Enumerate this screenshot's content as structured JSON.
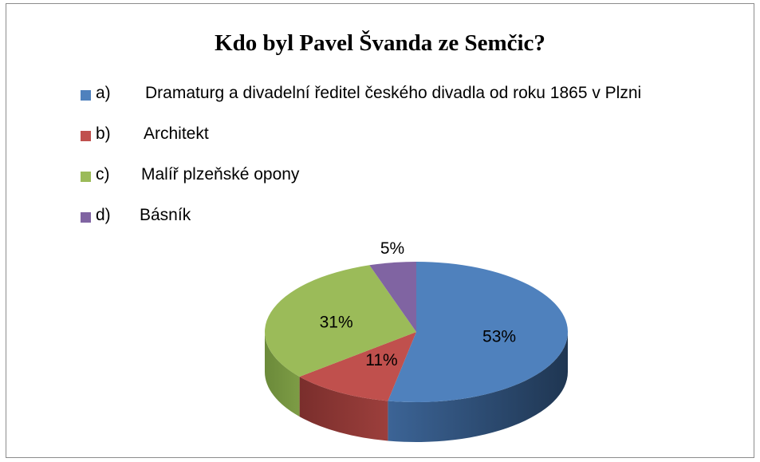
{
  "chart_data": {
    "type": "pie",
    "title": "Kdo byl Pavel Švanda ze Semčic?",
    "categories": [
      "a)  Dramaturg a divadelní ředitel českého divadla od roku 1865 v Plzni",
      "b)  Architekt",
      "c)  Malíř plzeňské opony",
      "d)  Básník"
    ],
    "legend_letters": [
      "a)",
      "b)",
      "c)",
      "d)"
    ],
    "legend_texts": [
      "Dramaturg a divadelní ředitel českého divadla od roku 1865 v Plzni",
      "Architekt",
      "Malíř plzeňské opony",
      "Básník"
    ],
    "values": [
      53,
      11,
      31,
      5
    ],
    "data_labels": [
      "53%",
      "11%",
      "31%",
      "5%"
    ],
    "colors": [
      "#4f81bd",
      "#c0504d",
      "#9bbb59",
      "#8064a2"
    ],
    "legend_position": "top-left",
    "style": "3d"
  }
}
